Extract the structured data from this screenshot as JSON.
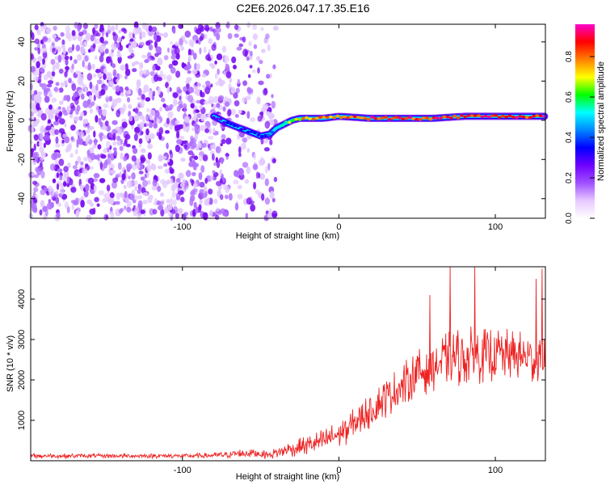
{
  "title": "C2E6.2026.047.17.35.E16",
  "chart_data": [
    {
      "type": "heatmap",
      "xlabel": "Height of straight line (km)",
      "ylabel": "Frequency (Hz)",
      "xlim": [
        -197,
        132
      ],
      "ylim": [
        -50,
        49
      ],
      "xticks": [
        -100,
        0,
        100
      ],
      "yticks": [
        -40,
        -20,
        0,
        20,
        40
      ],
      "colorbar": {
        "label": "Normalized spectral amplitude",
        "range": [
          0.0,
          0.96
        ],
        "ticks": [
          0.0,
          0.2,
          0.4,
          0.6,
          0.8
        ],
        "colors": [
          "#ffffff",
          "#e8c8ff",
          "#a050ff",
          "#7000ff",
          "#0000ff",
          "#0088ff",
          "#00ffff",
          "#00ff00",
          "#ffff00",
          "#ff8000",
          "#ff0000",
          "#ff00cc"
        ]
      },
      "signal_track": {
        "x": [
          -80,
          -70,
          -60,
          -50,
          -44,
          -40,
          -35,
          -30,
          -25,
          -20,
          -10,
          0,
          20,
          40,
          60,
          80,
          100,
          120,
          132
        ],
        "freq": [
          2,
          -2,
          -5,
          -8,
          -7,
          -4,
          -2,
          0,
          1,
          1,
          1,
          2,
          1,
          1,
          1,
          2,
          2,
          2,
          2
        ],
        "amplitude": [
          0.3,
          0.35,
          0.35,
          0.35,
          0.4,
          0.5,
          0.6,
          0.7,
          0.75,
          0.8,
          0.85,
          0.85,
          0.9,
          0.9,
          0.9,
          0.9,
          0.92,
          0.92,
          0.92
        ]
      },
      "noise_region": {
        "x": [
          -197,
          -40
        ],
        "freq": [
          -50,
          49
        ],
        "amplitude": [
          0.1,
          0.3
        ]
      }
    },
    {
      "type": "line",
      "xlabel": "Height of straight line (km)",
      "ylabel": "SNR (10 * v/v)",
      "xlim": [
        -197,
        132
      ],
      "ylim": [
        0,
        4800
      ],
      "xticks": [
        -100,
        0,
        100
      ],
      "yticks": [
        1000,
        2000,
        3000,
        4000
      ],
      "series": [
        {
          "name": "SNR",
          "color": "#ee2222",
          "envelope_x": [
            -197,
            -150,
            -100,
            -80,
            -65,
            -55,
            -45,
            -35,
            -20,
            -10,
            0,
            10,
            20,
            30,
            40,
            50,
            60,
            70,
            80,
            90,
            100,
            110,
            120,
            132
          ],
          "envelope_mean": [
            120,
            120,
            120,
            130,
            170,
            200,
            140,
            250,
            380,
            500,
            650,
            900,
            1250,
            1550,
            1850,
            2150,
            2350,
            2500,
            2600,
            2600,
            2650,
            2600,
            2550,
            2500
          ],
          "envelope_spread": [
            60,
            60,
            60,
            70,
            120,
            130,
            100,
            180,
            250,
            300,
            350,
            420,
            450,
            500,
            550,
            600,
            650,
            700,
            750,
            700,
            700,
            650,
            650,
            650
          ],
          "peaks": [
            {
              "x": 71,
              "y": 4800
            },
            {
              "x": 87,
              "y": 4800
            },
            {
              "x": 126,
              "y": 4500
            },
            {
              "x": 58,
              "y": 4100
            },
            {
              "x": 130,
              "y": 4750
            }
          ]
        }
      ]
    }
  ]
}
